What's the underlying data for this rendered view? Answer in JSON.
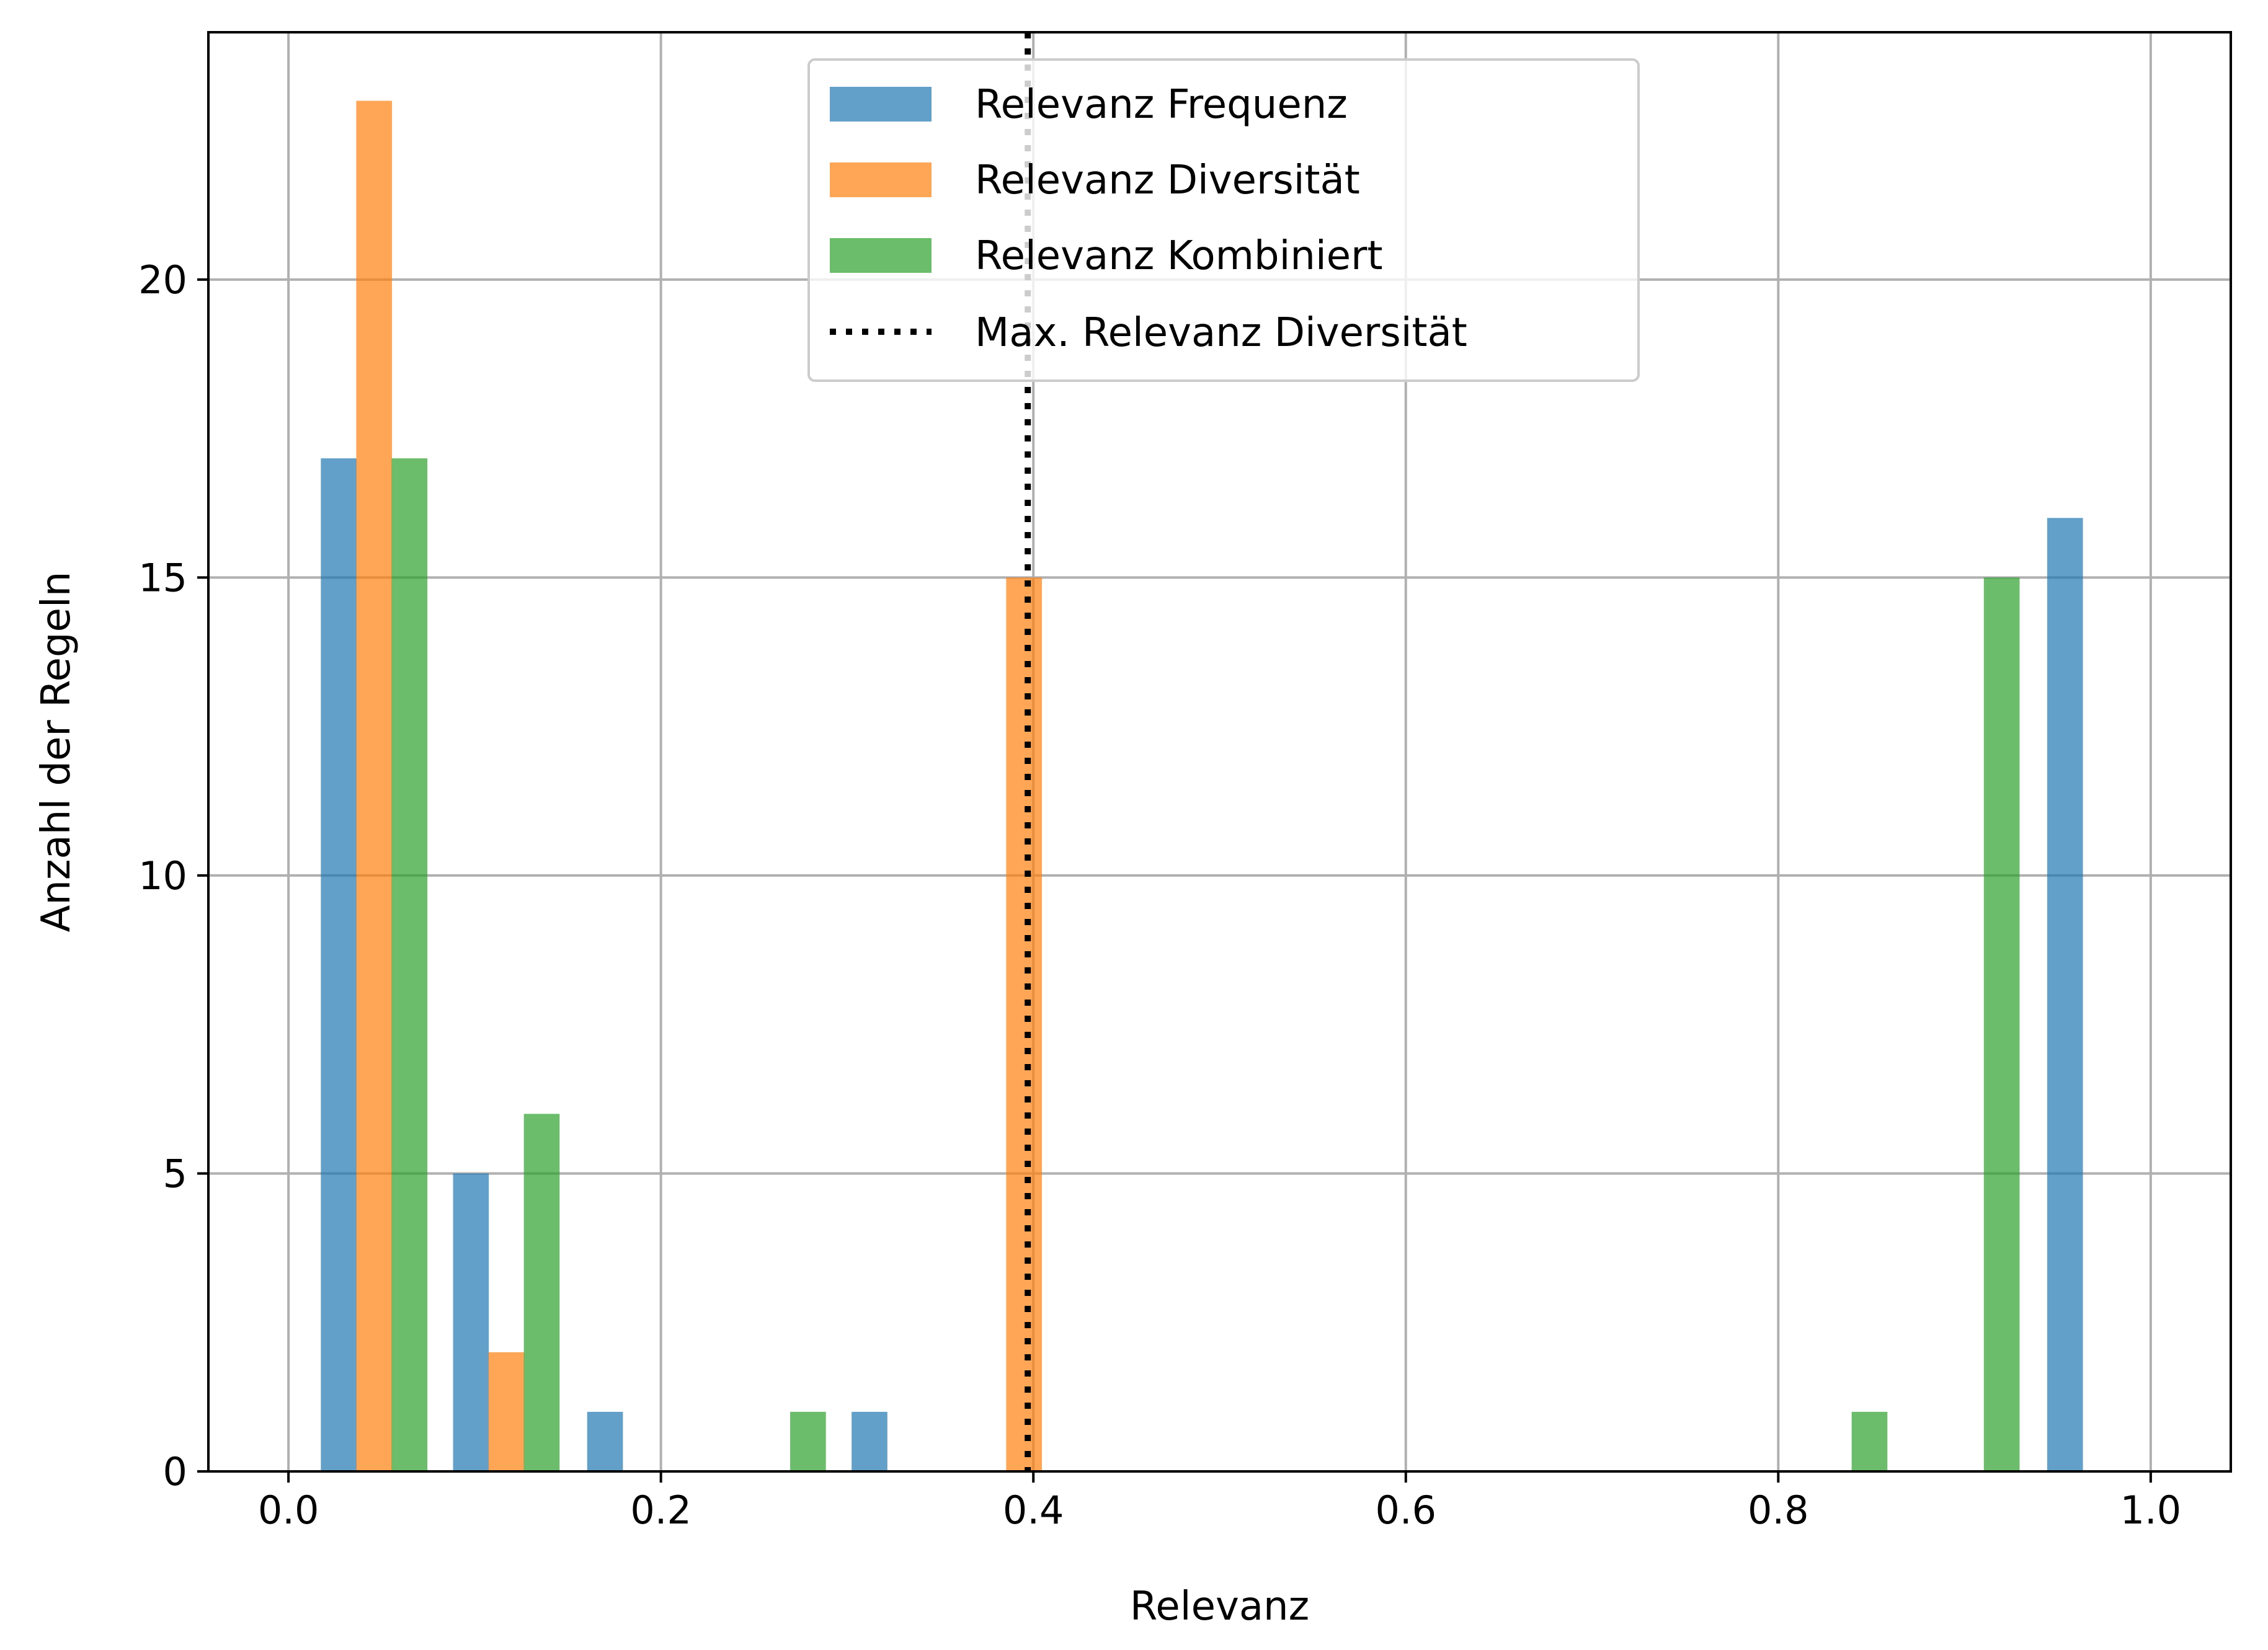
{
  "chart_data": {
    "type": "bar",
    "xlabel": "Relevanz",
    "ylabel": "Anzahl der Regeln",
    "xlim": [
      -0.043,
      1.043
    ],
    "ylim": [
      0,
      24.15
    ],
    "xticks": [
      0.0,
      0.2,
      0.4,
      0.6,
      0.8,
      1.0
    ],
    "xtick_labels": [
      "0.0",
      "0.2",
      "0.4",
      "0.6",
      "0.8",
      "1.0"
    ],
    "yticks": [
      0,
      5,
      10,
      15,
      20
    ],
    "ytick_labels": [
      "0",
      "5",
      "10",
      "15",
      "20"
    ],
    "grid": true,
    "legend_position": "top-center",
    "bar_width": 0.0192,
    "series": [
      {
        "name": "Relevanz Frequenz",
        "color": "#1f77b4",
        "bars": [
          {
            "x": 0.027,
            "value": 17
          },
          {
            "x": 0.098,
            "value": 5
          },
          {
            "x": 0.17,
            "value": 1
          },
          {
            "x": 0.312,
            "value": 1
          },
          {
            "x": 0.954,
            "value": 16
          }
        ]
      },
      {
        "name": "Relevanz Diversität",
        "color": "#ff7f0e",
        "bars": [
          {
            "x": 0.046,
            "value": 23
          },
          {
            "x": 0.117,
            "value": 2
          },
          {
            "x": 0.395,
            "value": 15
          }
        ]
      },
      {
        "name": "Relevanz Kombiniert",
        "color": "#2ca02c",
        "bars": [
          {
            "x": 0.065,
            "value": 17
          },
          {
            "x": 0.136,
            "value": 6
          },
          {
            "x": 0.279,
            "value": 1
          },
          {
            "x": 0.849,
            "value": 1
          },
          {
            "x": 0.92,
            "value": 15
          }
        ]
      }
    ],
    "reference_line": {
      "name": "Max. Relevanz Diversität",
      "x": 0.397,
      "color": "#000000",
      "style": "dotted"
    }
  }
}
